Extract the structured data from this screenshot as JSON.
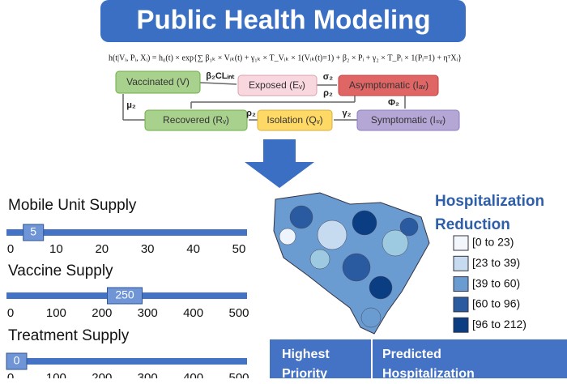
{
  "title": "Public Health Modeling",
  "formula": "h(t|Vᵢ, Pᵢ, Xᵢ) = h₀(t) × exp{∑ β₁ₖ × Vᵢₖ(t) + γ₁ₖ × T_Vᵢₖ × 1(Vᵢₖ(t)=1) + β₂ × Pᵢ + γ₂ × T_Pᵢ × 1(Pᵢ=1) + ηᵀXᵢ}",
  "diagram": {
    "nodes": [
      "Vaccinated (V)",
      "Exposed (Eᵥ)",
      "Asymptomatic (Iₐᵥ)",
      "Symptomatic (Iₛᵥ)",
      "Isolation (Qᵥ)",
      "Recovered (Rᵥ)"
    ],
    "edge_labels": [
      "β₂CLᵢₙₜ",
      "σ₂",
      "ρ₂",
      "Φ₂",
      "γ₂",
      "ρ₂",
      "μ₂"
    ]
  },
  "sliders": [
    {
      "label": "Mobile Unit Supply",
      "value": 5,
      "ticks": [
        0,
        10,
        20,
        30,
        40,
        50
      ]
    },
    {
      "label": "Vaccine Supply",
      "value": 250,
      "ticks": [
        0,
        100,
        200,
        300,
        400,
        500
      ]
    },
    {
      "label": "Treatment Supply",
      "value": 0,
      "ticks": [
        0,
        100,
        200,
        300,
        400,
        500
      ]
    }
  ],
  "map_legend": {
    "title": "Hospitalization Reduction",
    "bins": [
      "[0 to 23)",
      "[23 to 39)",
      "[39 to 60)",
      "[60 to 96)",
      "[96 to 212)"
    ]
  },
  "table": {
    "headers": [
      "Highest Priority",
      "Predicted Hospitalization"
    ]
  }
}
